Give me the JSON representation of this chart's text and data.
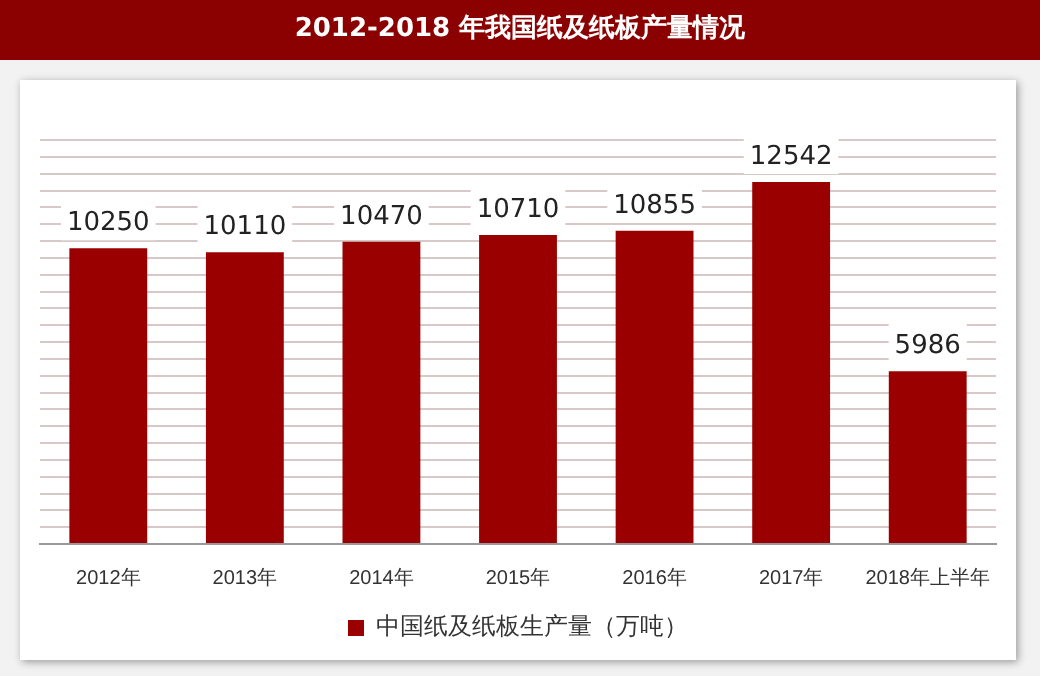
{
  "chart_data": {
    "type": "bar",
    "title": "2012-2018 年我国纸及纸板产量情况",
    "categories": [
      "2012年",
      "2013年",
      "2014年",
      "2015年",
      "2016年",
      "2017年",
      "2018年上半年"
    ],
    "series": [
      {
        "name": "中国纸及纸板生产量（万吨）",
        "color": "#9b0000",
        "values": [
          10250,
          10110,
          10470,
          10710,
          10855,
          12542,
          5986
        ]
      }
    ],
    "tick_labels": "x",
    "data_labels": true,
    "grid": "y",
    "legend": "bottom"
  }
}
